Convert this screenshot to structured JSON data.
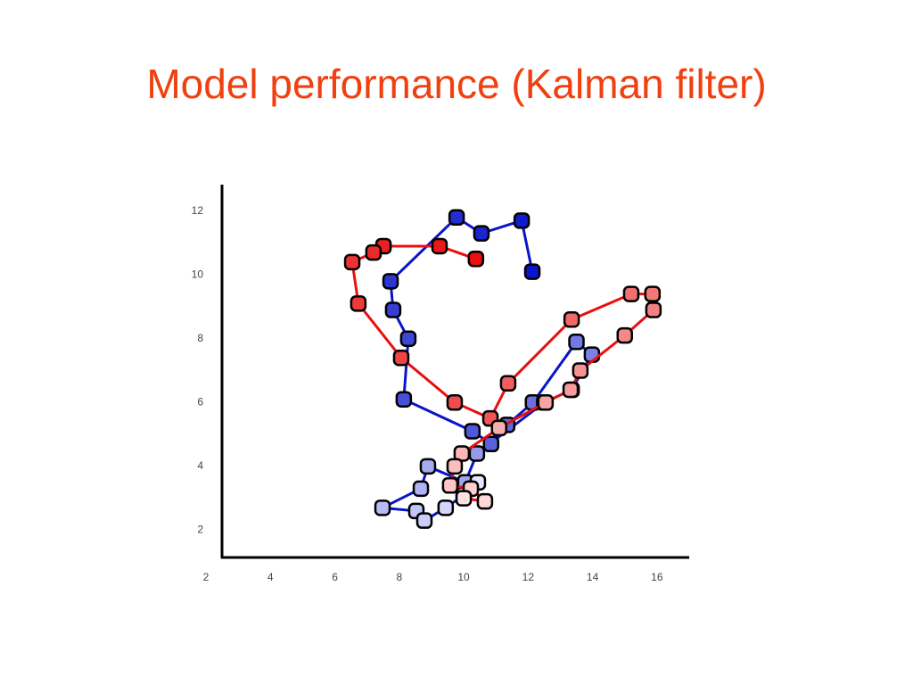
{
  "chart_data": {
    "type": "line",
    "title": "Model performance (Kalman filter)",
    "xlim": [
      2,
      17
    ],
    "ylim": [
      1.2,
      12.8
    ],
    "xticks": [
      2,
      4,
      6,
      8,
      10,
      12,
      14,
      16
    ],
    "yticks": [
      2,
      4,
      6,
      8,
      10,
      12
    ],
    "series": [
      {
        "color": "#0a14c8",
        "fade_to": "#e4e6ff",
        "x": [
          12.13,
          11.8,
          10.55,
          9.78,
          7.73,
          7.81,
          8.28,
          8.14,
          10.27,
          10.85,
          11.35,
          12.15,
          13.5,
          13.98,
          13.35,
          12.5,
          10.41,
          10.05,
          8.89,
          8.67,
          7.48,
          8.53,
          8.78,
          9.44,
          10.0,
          10.44
        ],
        "values": [
          10.1,
          11.7,
          11.3,
          11.8,
          9.8,
          8.9,
          8.0,
          6.1,
          5.1,
          4.7,
          5.3,
          6.0,
          7.9,
          7.5,
          6.4,
          6.0,
          4.4,
          3.5,
          4.0,
          3.3,
          2.7,
          2.6,
          2.3,
          2.7,
          3.1,
          3.5
        ]
      },
      {
        "color": "#e81010",
        "fade_to": "#ffe0e0",
        "x": [
          10.38,
          9.25,
          7.51,
          7.2,
          6.54,
          6.73,
          8.06,
          9.72,
          10.83,
          11.38,
          13.35,
          15.2,
          15.86,
          15.89,
          15.0,
          13.62,
          13.32,
          12.54,
          11.1,
          9.94,
          9.72,
          9.58,
          10.22,
          10.66,
          10.0
        ],
        "values": [
          10.5,
          10.9,
          10.9,
          10.7,
          10.4,
          9.1,
          7.4,
          6.0,
          5.5,
          6.6,
          8.6,
          9.4,
          9.4,
          8.9,
          8.1,
          7.0,
          6.4,
          6.0,
          5.2,
          4.4,
          4.0,
          3.4,
          3.3,
          2.9,
          3.0
        ]
      }
    ]
  }
}
